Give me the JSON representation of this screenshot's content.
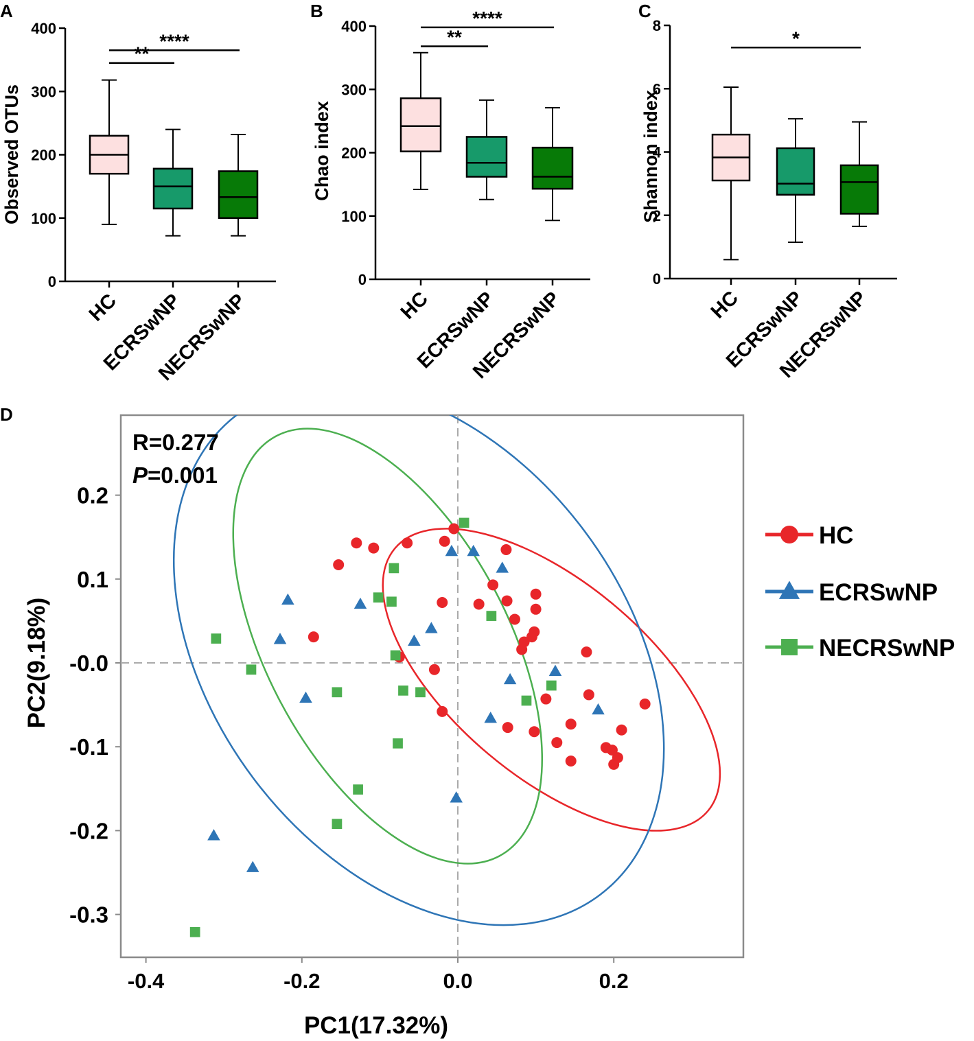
{
  "chart_data": [
    {
      "panel": "A",
      "type": "box",
      "ylabel": "Observed OTUs",
      "yticks": [
        "0",
        "100",
        "200",
        "300",
        "400"
      ],
      "ylim": [
        0,
        400
      ],
      "categories": [
        "HC",
        "ECRSwNP",
        "NECRSwNP"
      ],
      "boxes": [
        {
          "min": 90,
          "q1": 170,
          "median": 200,
          "q3": 230,
          "max": 318,
          "color": "#fde0e0"
        },
        {
          "min": 72,
          "q1": 115,
          "median": 150,
          "q3": 178,
          "max": 240,
          "color": "#179a6a"
        },
        {
          "min": 72,
          "q1": 100,
          "median": 133,
          "q3": 174,
          "max": 232,
          "color": "#077a07"
        }
      ],
      "significance": [
        {
          "from": 0,
          "to": 1,
          "label": "**",
          "y": 345
        },
        {
          "from": 0,
          "to": 2,
          "label": "****",
          "y": 365
        }
      ]
    },
    {
      "panel": "B",
      "type": "box",
      "ylabel": "Chao index",
      "yticks": [
        "0",
        "100",
        "200",
        "300",
        "400"
      ],
      "ylim": [
        0,
        400
      ],
      "categories": [
        "HC",
        "ECRSwNP",
        "NECRSwNP"
      ],
      "boxes": [
        {
          "min": 142,
          "q1": 202,
          "median": 242,
          "q3": 286,
          "max": 358,
          "color": "#fde0e0"
        },
        {
          "min": 126,
          "q1": 162,
          "median": 184,
          "q3": 225,
          "max": 283,
          "color": "#179a6a"
        },
        {
          "min": 93,
          "q1": 143,
          "median": 162,
          "q3": 208,
          "max": 271,
          "color": "#077a07"
        }
      ],
      "significance": [
        {
          "from": 0,
          "to": 1,
          "label": "**",
          "y": 368
        },
        {
          "from": 0,
          "to": 2,
          "label": "****",
          "y": 398
        }
      ]
    },
    {
      "panel": "C",
      "type": "box",
      "ylabel": "Shannon  index",
      "yticks": [
        "0",
        "2",
        "4",
        "6",
        "8"
      ],
      "ylim": [
        0,
        8
      ],
      "categories": [
        "HC",
        "ECRSwNP",
        "NECRSwNP"
      ],
      "boxes": [
        {
          "min": 0.6,
          "q1": 3.1,
          "median": 3.83,
          "q3": 4.55,
          "max": 6.05,
          "color": "#fde0e0"
        },
        {
          "min": 1.15,
          "q1": 2.65,
          "median": 3.0,
          "q3": 4.12,
          "max": 5.05,
          "color": "#179a6a"
        },
        {
          "min": 1.65,
          "q1": 2.05,
          "median": 3.05,
          "q3": 3.58,
          "max": 4.95,
          "color": "#077a07"
        }
      ],
      "significance": [
        {
          "from": 0,
          "to": 2,
          "label": "*",
          "y": 7.3
        }
      ]
    },
    {
      "panel": "D",
      "type": "scatter",
      "xlabel": "PC1(17.32%)",
      "ylabel": "PC2(9.18%)",
      "xlim": [
        -0.43,
        0.37
      ],
      "ylim": [
        -0.35,
        0.28
      ],
      "xticks": [
        "-0.4",
        "-0.2",
        "0.0",
        "0.2"
      ],
      "xtick_values": [
        -0.4,
        -0.2,
        0.0,
        0.2
      ],
      "yticks": [
        "0.2",
        "0.1",
        "-0.0",
        "-0.1",
        "-0.2",
        "-0.3"
      ],
      "ytick_values": [
        0.2,
        0.1,
        0.0,
        -0.1,
        -0.2,
        -0.3
      ],
      "annotation_r": "R=0.277",
      "annotation_p_italic": "P",
      "annotation_p_value": "=0.001",
      "legend_position": "right",
      "series": [
        {
          "name": "HC",
          "marker": "circle",
          "color": "#e8262a",
          "x": [
            -0.13,
            -0.108,
            -0.065,
            -0.153,
            -0.185,
            -0.017,
            -0.005,
            0.062,
            0.045,
            0.063,
            0.1,
            0.1,
            0.027,
            -0.02,
            0.073,
            0.098,
            0.095,
            0.085,
            0.082,
            -0.075,
            -0.03,
            0.165,
            0.168,
            0.113,
            0.24,
            -0.02,
            0.064,
            0.098,
            0.145,
            0.21,
            0.127,
            0.19,
            0.198,
            0.145,
            0.205,
            0.2
          ],
          "y": [
            0.143,
            0.137,
            0.143,
            0.117,
            0.031,
            0.145,
            0.16,
            0.135,
            0.093,
            0.074,
            0.082,
            0.064,
            0.07,
            0.072,
            0.052,
            0.037,
            0.031,
            0.025,
            0.016,
            0.007,
            -0.008,
            0.013,
            -0.038,
            -0.043,
            -0.049,
            -0.058,
            -0.077,
            -0.082,
            -0.073,
            -0.08,
            -0.095,
            -0.101,
            -0.104,
            -0.117,
            -0.113,
            -0.121
          ]
        },
        {
          "name": "ECRSwNP",
          "marker": "triangle",
          "color": "#2e75b6",
          "x": [
            -0.218,
            -0.228,
            -0.125,
            -0.195,
            -0.008,
            0.02,
            0.057,
            -0.034,
            -0.056,
            0.067,
            0.125,
            0.18,
            0.042,
            -0.002,
            -0.313,
            -0.263
          ],
          "y": [
            0.075,
            0.028,
            0.07,
            -0.042,
            0.133,
            0.133,
            0.113,
            0.041,
            0.026,
            -0.02,
            -0.01,
            -0.056,
            -0.066,
            -0.161,
            -0.206,
            -0.244
          ],
          "position_x": [
            0
          ],
          "position_y": [
            0
          ]
        },
        {
          "name": "NECRSwNP",
          "marker": "square",
          "color": "#4caf50",
          "x": [
            0.008,
            -0.082,
            -0.102,
            -0.085,
            -0.31,
            -0.265,
            -0.08,
            -0.155,
            -0.07,
            -0.048,
            0.043,
            0.12,
            0.088,
            -0.077,
            -0.128,
            -0.155,
            -0.337
          ],
          "y": [
            0.167,
            0.113,
            0.078,
            0.073,
            0.029,
            -0.008,
            0.009,
            -0.035,
            -0.033,
            -0.035,
            0.056,
            -0.027,
            -0.045,
            -0.096,
            -0.151,
            -0.192,
            -0.321
          ]
        }
      ],
      "ellipses": [
        {
          "series": "HC",
          "cx": 0.12,
          "cy": -0.02,
          "rx": 0.262,
          "ry": 0.125,
          "angle_deg": 40,
          "color": "#e8262a"
        },
        {
          "series": "ECRSwNP",
          "cx": -0.05,
          "cy": 0.01,
          "rx": 0.386,
          "ry": 0.265,
          "angle_deg": 53,
          "color": "#2e75b6"
        },
        {
          "series": "NECRSwNP",
          "cx": -0.09,
          "cy": 0.02,
          "rx": 0.305,
          "ry": 0.155,
          "angle_deg": 62,
          "color": "#4caf50"
        }
      ]
    }
  ],
  "panel_letters": {
    "a": "A",
    "b": "B",
    "c": "C",
    "d": "D"
  }
}
